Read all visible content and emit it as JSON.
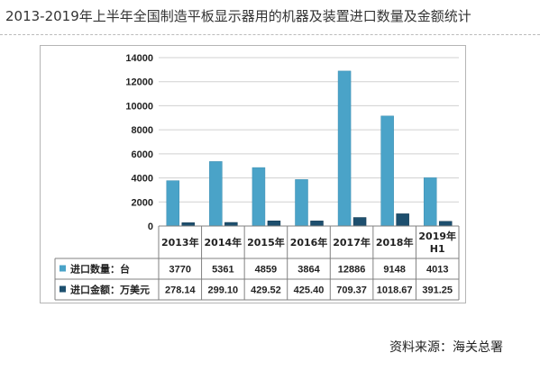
{
  "title": "2013-2019年上半年全国制造平板显示器用的机器及装置进口数量及金额统计",
  "source": "资料来源：海关总署",
  "colors": {
    "quantity": "#4aa3c8",
    "amount": "#1d4f6e",
    "grid": "#d0d0d0",
    "axis": "#808080"
  },
  "chart_data": {
    "type": "bar",
    "categories": [
      "2013年",
      "2014年",
      "2015年",
      "2016年",
      "2017年",
      "2018年",
      "2019年H1"
    ],
    "category_lines": [
      [
        "2013年"
      ],
      [
        "2014年"
      ],
      [
        "2015年"
      ],
      [
        "2016年"
      ],
      [
        "2017年"
      ],
      [
        "2018年"
      ],
      [
        "2019年",
        "H1"
      ]
    ],
    "series": [
      {
        "name": "进口数量：台",
        "values": [
          3770,
          5361,
          4859,
          3864,
          12886,
          9148,
          4013
        ]
      },
      {
        "name": "进口金额：万美元",
        "values": [
          278.14,
          299.1,
          429.52,
          425.4,
          709.37,
          1018.67,
          391.25
        ]
      }
    ],
    "table_values": [
      [
        "3770",
        "5361",
        "4859",
        "3864",
        "12886",
        "9148",
        "4013"
      ],
      [
        "278.14",
        "299.10",
        "429.52",
        "425.40",
        "709.37",
        "1018.67",
        "391.25"
      ]
    ],
    "ylim": [
      0,
      14000
    ],
    "yticks": [
      "0",
      "2000",
      "4000",
      "6000",
      "8000",
      "10000",
      "12000",
      "14000"
    ],
    "grid": true,
    "legend": "data-table"
  }
}
